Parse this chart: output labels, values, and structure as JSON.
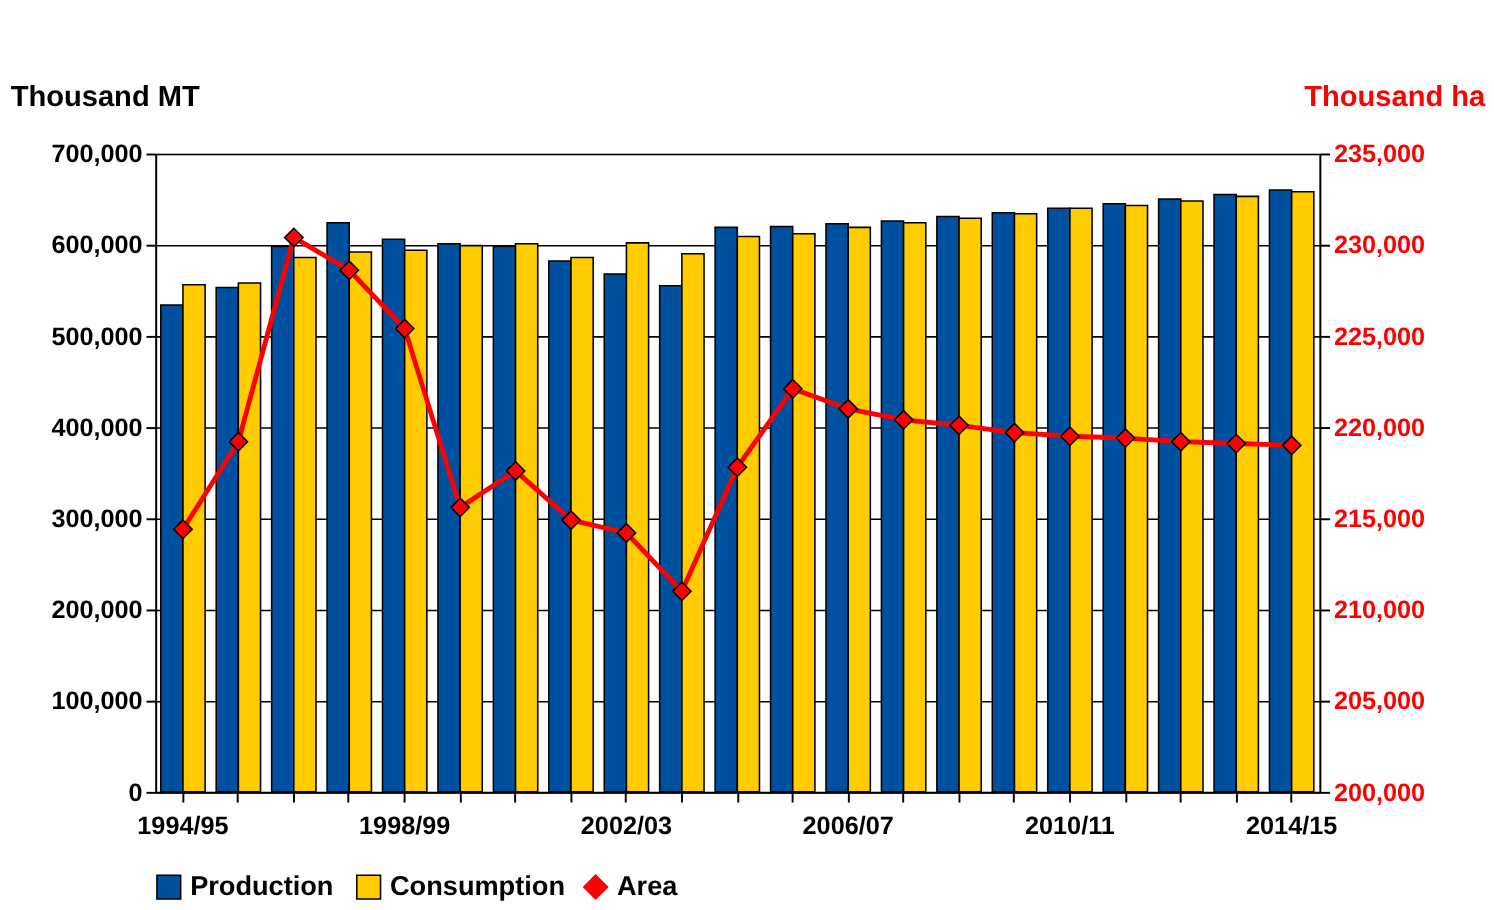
{
  "chart_data": {
    "type": "bar",
    "ylabel": "Thousand MT",
    "y2label": "Thousand ha",
    "categories": [
      "1994/95",
      null,
      null,
      null,
      "1998/99",
      null,
      null,
      null,
      "2002/03",
      null,
      null,
      null,
      "2006/07",
      null,
      null,
      null,
      "2010/11",
      null,
      null,
      null,
      "2014/15"
    ],
    "series": [
      {
        "name": "Production",
        "color": "#0050a0",
        "values": [
          534000,
          553000,
          598000,
          624000,
          606000,
          601000,
          598000,
          582000,
          568000,
          555000,
          619000,
          620000,
          623000,
          626000,
          631000,
          635000,
          640000,
          645000,
          650000,
          655000,
          660000
        ]
      },
      {
        "name": "Consumption",
        "color": "#ffcc00",
        "values": [
          556000,
          558000,
          586000,
          592000,
          594000,
          599000,
          601000,
          586000,
          602000,
          590000,
          609000,
          612000,
          619000,
          624000,
          629000,
          634000,
          640000,
          643000,
          648000,
          653000,
          658000
        ]
      },
      {
        "name": "Area",
        "type": "line",
        "axis": "y2",
        "color": "#ff0000",
        "values": [
          214400,
          219200,
          230400,
          228600,
          225400,
          215600,
          217600,
          214900,
          214200,
          211000,
          217800,
          222100,
          221000,
          220400,
          220100,
          219700,
          219500,
          219400,
          219200,
          219100,
          219000
        ]
      }
    ],
    "ylim": [
      0,
      700000
    ],
    "yticks": [
      {
        "value": 0,
        "label": "0"
      },
      {
        "value": 100000,
        "label": "100,000"
      },
      {
        "value": 200000,
        "label": "200,000"
      },
      {
        "value": 300000,
        "label": "300,000"
      },
      {
        "value": 400000,
        "label": "400,000"
      },
      {
        "value": 500000,
        "label": "500,000"
      },
      {
        "value": 600000,
        "label": "600,000"
      },
      {
        "value": 700000,
        "label": "700,000"
      }
    ],
    "y2lim": [
      200000,
      235000
    ],
    "y2ticks": [
      {
        "value": 200000,
        "label": "200,000"
      },
      {
        "value": 205000,
        "label": "205,000"
      },
      {
        "value": 210000,
        "label": "210,000"
      },
      {
        "value": 215000,
        "label": "215,000"
      },
      {
        "value": 220000,
        "label": "220,000"
      },
      {
        "value": 225000,
        "label": "225,000"
      },
      {
        "value": 230000,
        "label": "230,000"
      },
      {
        "value": 235000,
        "label": "235,000"
      }
    ],
    "grid": "y",
    "legend": "bottom",
    "marker": "diamond",
    "line_style": "solid"
  }
}
